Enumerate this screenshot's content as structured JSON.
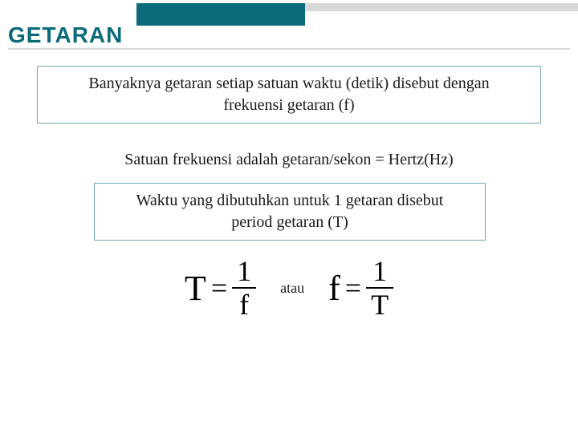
{
  "title": "GETARAN",
  "colors": {
    "accent": "#0b6b7a",
    "box_border": "#6fa8b6",
    "divider": "#d9d9d9",
    "text": "#1a1a1a",
    "background": "#ffffff"
  },
  "box1_line1": "Banyaknya getaran setiap satuan waktu (detik) disebut dengan",
  "box1_line2": "frekuensi getaran (f)",
  "line2": "Satuan frekuensi adalah getaran/sekon = Hertz(Hz)",
  "box2_line1": "Waktu yang dibutuhkan untuk 1 getaran disebut",
  "box2_line2": "period getaran (T)",
  "formula1": {
    "lhs": "T",
    "eq": "=",
    "num": "1",
    "den": "f"
  },
  "connector": "atau",
  "formula2": {
    "lhs": "f",
    "eq": "=",
    "num": "1",
    "den": "T"
  }
}
